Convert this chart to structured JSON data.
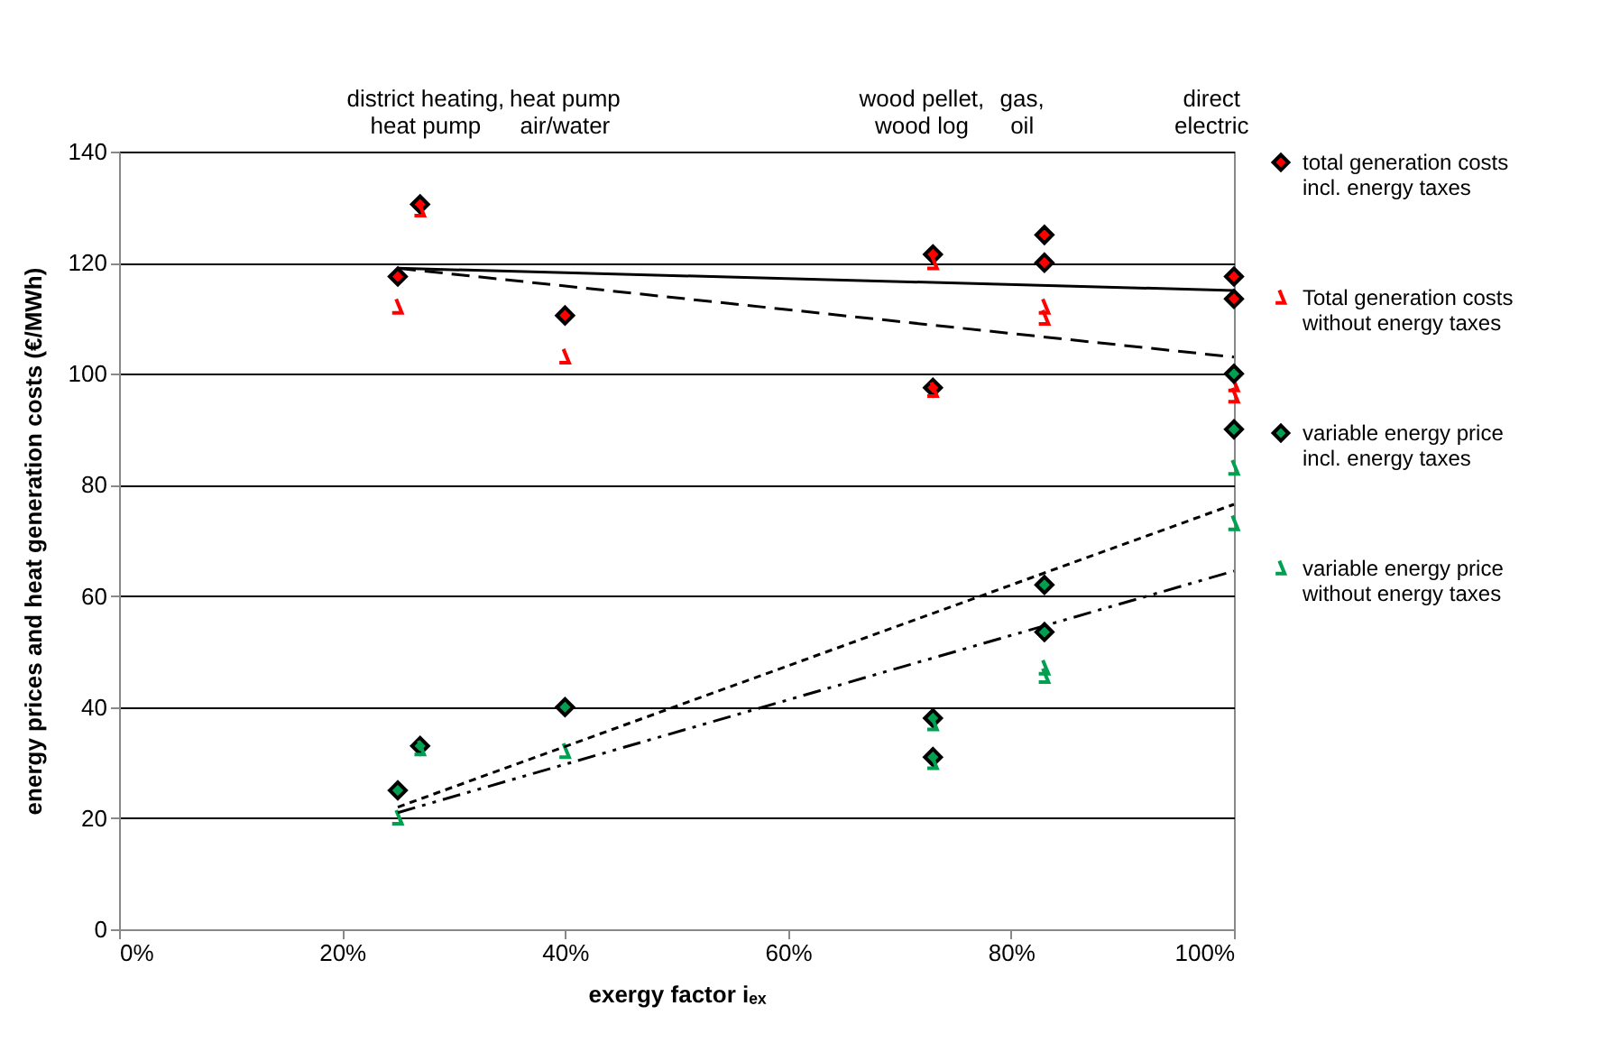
{
  "chart_data": {
    "type": "scatter",
    "xlabel": "exergy factor iₑₓ",
    "ylabel": "energy prices and heat generation costs (€/MWh)",
    "xlim": [
      0,
      100
    ],
    "xticks": [
      {
        "value": 0,
        "label": "0%"
      },
      {
        "value": 20,
        "label": "20%"
      },
      {
        "value": 40,
        "label": "40%"
      },
      {
        "value": 60,
        "label": "60%"
      },
      {
        "value": 80,
        "label": "80%"
      },
      {
        "value": 100,
        "label": "100%"
      }
    ],
    "ylim": [
      0,
      140
    ],
    "yticks": [
      0,
      20,
      40,
      60,
      80,
      100,
      120,
      140
    ],
    "grid": "y",
    "legend": "right",
    "series": [
      {
        "name": "total generation costs incl. energy taxes",
        "color": "#ff0000",
        "marker": "diamond",
        "x": [
          25,
          27,
          40,
          73,
          73,
          83,
          83,
          100,
          100
        ],
        "values": [
          117.5,
          130.5,
          110.5,
          121.5,
          97.5,
          125,
          120,
          117.5,
          113.5
        ]
      },
      {
        "name": "Total generation costs without energy taxes",
        "color": "#ff0000",
        "x": [
          25,
          27,
          40,
          73,
          73,
          83,
          83,
          100,
          100
        ],
        "values": [
          112,
          129.5,
          103,
          120,
          97,
          112,
          110,
          98,
          96
        ]
      },
      {
        "name": "variable energy price incl. energy taxes",
        "color": "#00a050",
        "marker": "diamond",
        "x": [
          25,
          27,
          40,
          73,
          73,
          83,
          83,
          100,
          100
        ],
        "values": [
          25,
          33,
          40,
          38,
          31,
          62,
          53.5,
          100,
          90
        ]
      },
      {
        "name": "variable energy price without energy taxes",
        "color": "#00a050",
        "x": [
          25,
          27,
          40,
          73,
          73,
          83,
          83,
          100,
          100
        ],
        "values": [
          20,
          32.5,
          32,
          37,
          30,
          47,
          45.5,
          83,
          73
        ]
      },
      {
        "type": "line",
        "color": "#000000",
        "line_style": "solid",
        "x": [
          25,
          100
        ],
        "values": [
          119,
          115
        ]
      },
      {
        "type": "line",
        "color": "#000000",
        "line_style": "dashed",
        "x": [
          25,
          100
        ],
        "values": [
          119,
          103
        ]
      },
      {
        "type": "line",
        "color": "#000000",
        "line_style": "dotted",
        "x": [
          25,
          100
        ],
        "values": [
          22,
          76.5
        ]
      },
      {
        "type": "line",
        "color": "#000000",
        "line_style": "dashdot",
        "x": [
          25,
          100
        ],
        "values": [
          21,
          64.5
        ]
      }
    ],
    "annotations": [
      "district heating,\nheat pump",
      "heat pump\nair/water",
      "wood pellet,\nwood log",
      "gas,\noil",
      "direct\nelectric"
    ]
  }
}
